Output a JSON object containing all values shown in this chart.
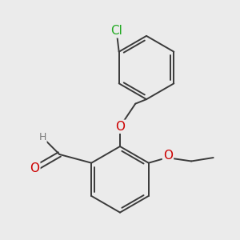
{
  "background_color": "#ebebeb",
  "bond_color": "#3a3a3a",
  "bond_width": 1.4,
  "atom_colors": {
    "H": "#7a7a7a",
    "O": "#cc0000",
    "Cl": "#22aa22"
  },
  "font_size": 10,
  "figsize": [
    3.0,
    3.0
  ],
  "dpi": 100,
  "xlim": [
    -2.5,
    2.5
  ],
  "ylim": [
    -2.7,
    2.7
  ]
}
